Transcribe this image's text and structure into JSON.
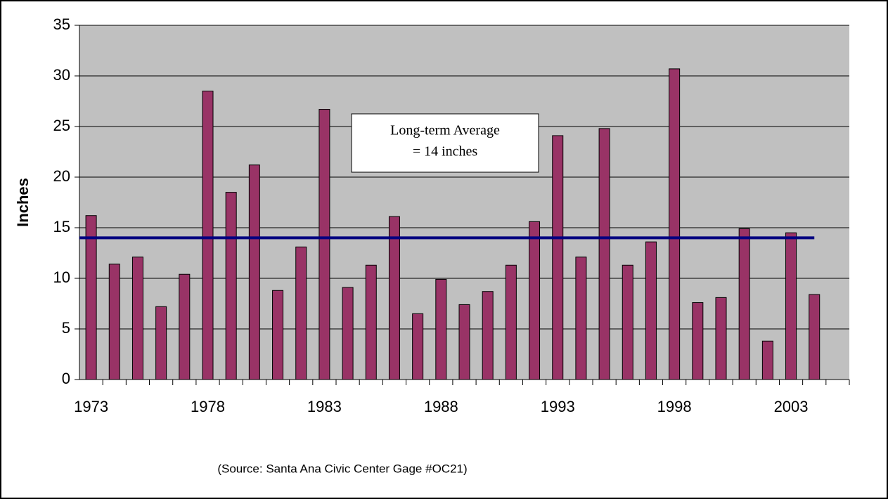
{
  "chart_data": {
    "type": "bar",
    "y_label": "Inches",
    "categories": [
      "1973",
      null,
      null,
      null,
      null,
      "1978",
      null,
      null,
      null,
      null,
      "1983",
      null,
      null,
      null,
      null,
      "1988",
      null,
      null,
      null,
      null,
      "1993",
      null,
      null,
      null,
      null,
      "1998",
      null,
      null,
      null,
      null,
      "2003",
      null
    ],
    "values": [
      16.2,
      11.4,
      12.1,
      7.2,
      10.4,
      28.5,
      18.5,
      21.2,
      8.8,
      13.1,
      26.7,
      9.1,
      11.3,
      16.1,
      6.5,
      9.9,
      7.4,
      8.7,
      11.3,
      15.6,
      24.1,
      12.1,
      24.8,
      11.3,
      13.6,
      30.7,
      7.6,
      8.1,
      14.9,
      3.8,
      14.5,
      8.4
    ],
    "color": "#993366",
    "average": 14,
    "average_color": "#000080",
    "annotation": [
      "Long-term Average",
      "= 14 inches"
    ],
    "source": "(Source:  Santa Ana Civic Center Gage #OC21)",
    "ylim": [
      0,
      35
    ],
    "yticks": [
      0,
      5,
      10,
      15,
      20,
      25,
      30,
      35
    ],
    "grid": true
  }
}
